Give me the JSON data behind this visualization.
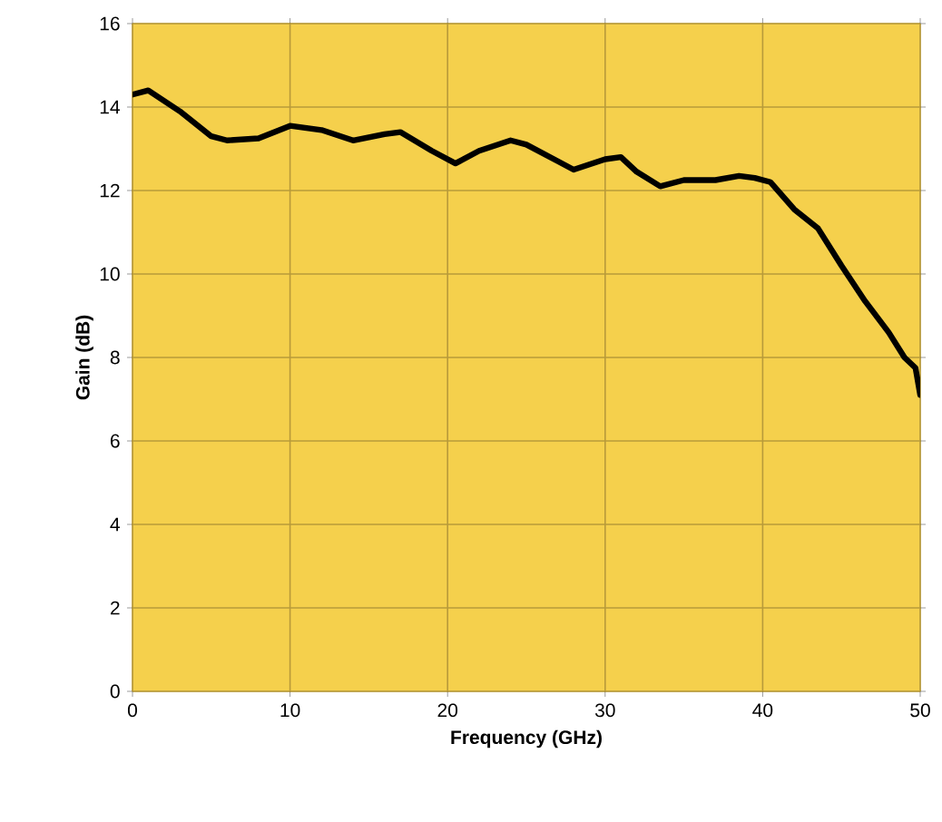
{
  "chart_data": {
    "type": "line",
    "xlabel": "Frequency (GHz)",
    "ylabel": "Gain (dB)",
    "x": [
      0,
      1,
      3,
      5,
      6,
      8,
      10,
      12,
      14,
      16,
      17,
      19,
      20.5,
      22,
      24,
      25,
      27,
      28,
      30,
      31,
      32,
      33.5,
      35,
      37,
      38.5,
      39.5,
      40.5,
      42,
      43.5,
      45,
      46.5,
      48,
      49,
      49.7,
      50
    ],
    "series": [
      {
        "color": "#000000",
        "values": [
          14.3,
          14.4,
          13.9,
          13.3,
          13.2,
          13.25,
          13.55,
          13.45,
          13.2,
          13.35,
          13.4,
          12.95,
          12.65,
          12.95,
          13.2,
          13.1,
          12.7,
          12.5,
          12.75,
          12.8,
          12.45,
          12.1,
          12.25,
          12.25,
          12.35,
          12.3,
          12.2,
          11.55,
          11.1,
          10.2,
          9.35,
          8.6,
          8.0,
          7.75,
          7.1
        ]
      }
    ],
    "xlim": [
      0,
      50
    ],
    "ylim": [
      0,
      16
    ],
    "xticks": [
      0,
      10,
      20,
      30,
      40,
      50
    ],
    "yticks": [
      0,
      2,
      4,
      6,
      8,
      10,
      12,
      14,
      16
    ],
    "grid": true,
    "marker": "none",
    "line_style": "solid"
  }
}
